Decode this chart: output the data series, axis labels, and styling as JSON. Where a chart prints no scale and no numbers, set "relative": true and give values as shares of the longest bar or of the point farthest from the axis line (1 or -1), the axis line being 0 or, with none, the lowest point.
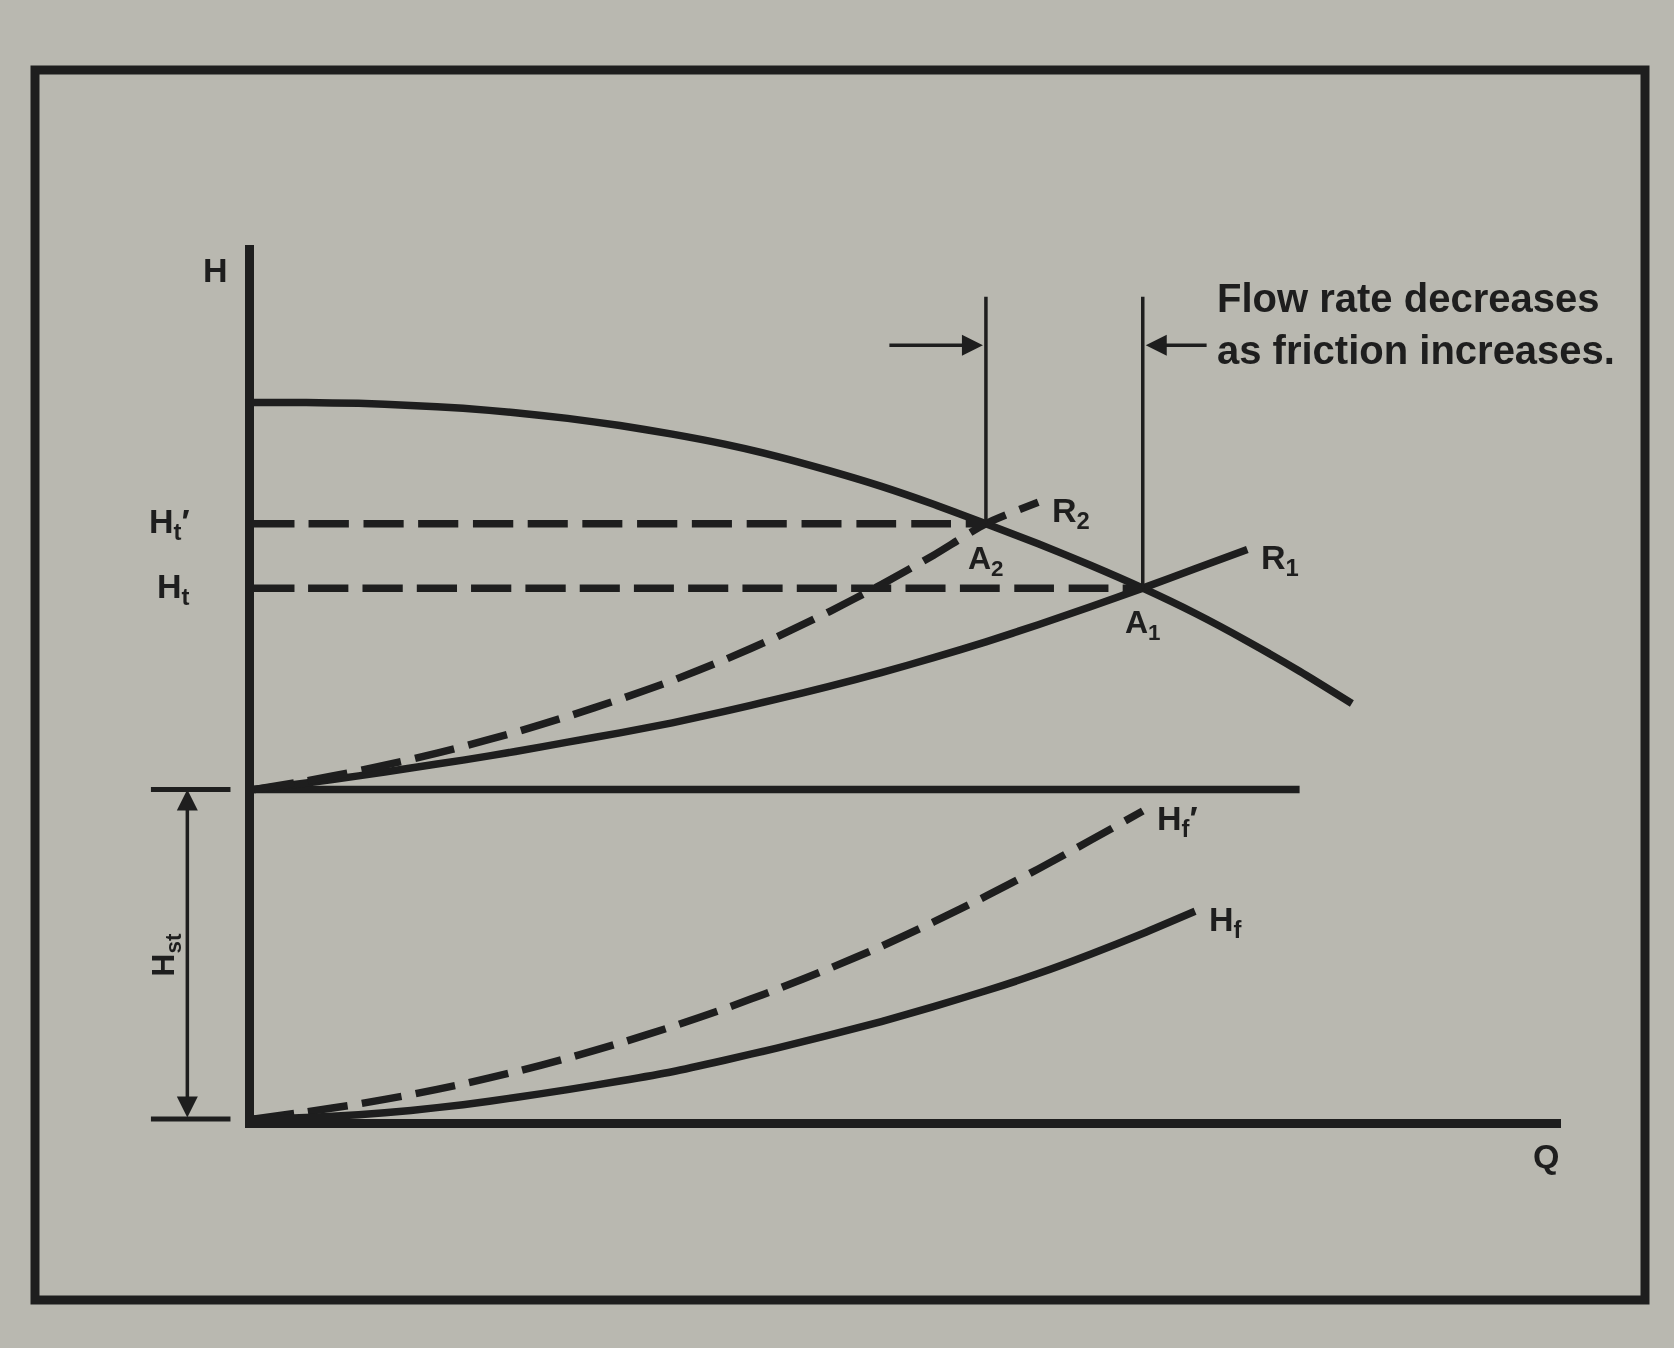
{
  "chart_data": {
    "type": "line",
    "relative": true,
    "xlabel": "Q",
    "ylabel": "H",
    "legend": false,
    "marker": "none",
    "categories": [
      null,
      null,
      null,
      null,
      null,
      null,
      null,
      null,
      null,
      null,
      null,
      null,
      null,
      null,
      null,
      null,
      null,
      null,
      null,
      null,
      null,
      null,
      null,
      null,
      null,
      null
    ],
    "series": [
      {
        "color": "#1e1e1e",
        "line_style": "solid",
        "values": [
          1.0,
          1.0,
          0.999,
          0.996,
          0.992,
          0.986,
          0.978,
          0.968,
          0.956,
          0.942,
          0.925,
          0.905,
          0.883,
          0.858,
          0.831,
          0.803,
          0.773,
          0.741,
          0.706,
          0.667,
          0.625,
          0.58,
          null,
          null,
          null,
          null
        ]
      },
      {
        "color": "#1e1e1e",
        "line_style": "solid",
        "values": [
          0.46,
          0.46,
          0.46,
          0.46,
          0.46,
          0.46,
          0.46,
          0.46,
          0.46,
          0.46,
          0.46,
          0.46,
          0.46,
          0.46,
          0.46,
          0.46,
          0.46,
          0.46,
          0.46,
          0.46,
          0.46,
          null,
          null,
          null,
          null,
          null
        ]
      },
      {
        "name": "R$_{1}$",
        "color": "#1e1e1e",
        "line_style": "solid",
        "values": [
          0.46,
          0.469,
          0.479,
          0.49,
          0.501,
          0.513,
          0.526,
          0.539,
          0.553,
          0.569,
          0.586,
          0.604,
          0.623,
          0.644,
          0.666,
          0.69,
          0.715,
          0.741,
          0.768,
          0.795,
          null,
          null,
          null,
          null,
          null,
          null
        ]
      },
      {
        "name": "R$_{2}$",
        "color": "#1e1e1e",
        "line_style": "dashed",
        "values": [
          0.46,
          0.472,
          0.486,
          0.502,
          0.52,
          0.54,
          0.562,
          0.586,
          0.612,
          0.641,
          0.673,
          0.708,
          0.746,
          0.787,
          0.831,
          0.861,
          null,
          null,
          null,
          null,
          null,
          null,
          null,
          null,
          null,
          null
        ]
      },
      {
        "name": "H$_{t}$′",
        "color": "#1e1e1e",
        "line_style": "dashed",
        "values": [
          0.831,
          0.831,
          0.831,
          0.831,
          0.831,
          0.831,
          0.831,
          0.831,
          0.831,
          0.831,
          0.831,
          0.831,
          0.831,
          0.831,
          0.831,
          null,
          null,
          null,
          null,
          null,
          null,
          null,
          null,
          null,
          null,
          null
        ]
      },
      {
        "name": "H$_{t}$",
        "color": "#1e1e1e",
        "line_style": "dashed",
        "values": [
          0.741,
          0.741,
          0.741,
          0.741,
          0.741,
          0.741,
          0.741,
          0.741,
          0.741,
          0.741,
          0.741,
          0.741,
          0.741,
          0.741,
          0.741,
          0.741,
          0.741,
          0.741,
          null,
          null,
          null,
          null,
          null,
          null,
          null,
          null
        ]
      },
      {
        "name": "H$_{f}$′",
        "color": "#1e1e1e",
        "line_style": "dashed",
        "values": [
          0,
          0.01,
          0.021,
          0.034,
          0.049,
          0.066,
          0.085,
          0.106,
          0.129,
          0.154,
          0.181,
          0.21,
          0.241,
          0.275,
          0.311,
          0.349,
          0.389,
          0.43,
          null,
          null,
          null,
          null,
          null,
          null,
          null,
          null
        ]
      },
      {
        "name": "H$_{f}$",
        "color": "#1e1e1e",
        "line_style": "solid",
        "values": [
          0,
          0.002,
          0.006,
          0.012,
          0.02,
          0.03,
          0.041,
          0.053,
          0.066,
          0.082,
          0.099,
          0.117,
          0.136,
          0.157,
          0.179,
          0.203,
          0.23,
          0.259,
          0.29,
          null,
          null,
          null,
          null,
          null,
          null,
          null
        ]
      }
    ],
    "annotations": [
      "Flow rate decreases as friction increases.",
      {
        "text": "A$_{2}$",
        "y": 0.831
      },
      {
        "text": "A$_{1}$",
        "y": 0.741
      },
      "H$_{st}$"
    ]
  }
}
